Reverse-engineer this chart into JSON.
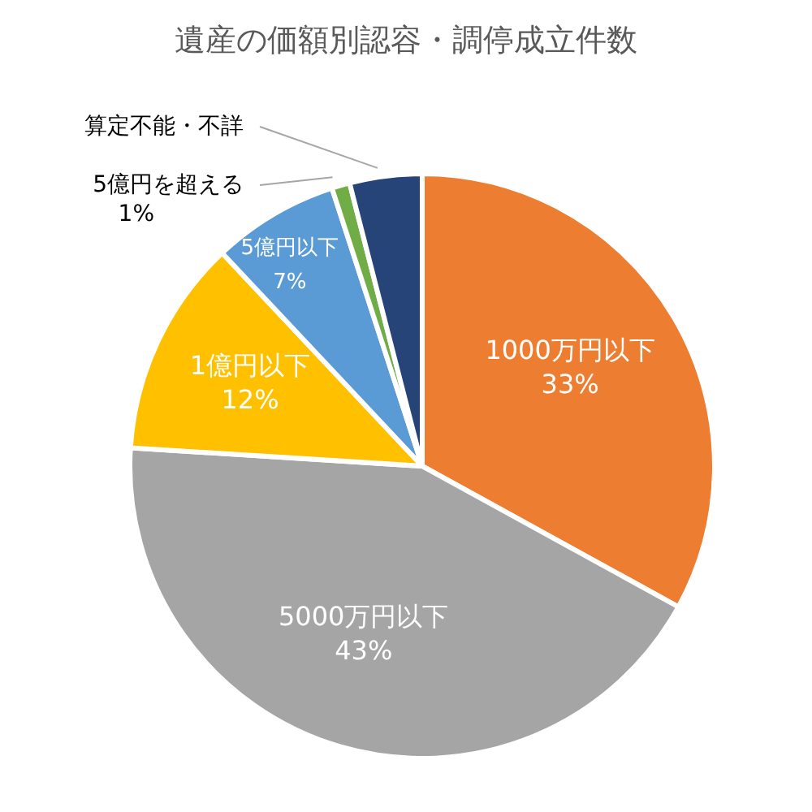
{
  "chart_data": {
    "type": "pie",
    "title": "遺産の価額別認容・調停成立件数",
    "categories": [
      "1000万円以下",
      "5000万円以下",
      "1億円以下",
      "5億円以下",
      "5億円を超える",
      "算定不能・不詳"
    ],
    "values": [
      33,
      43,
      12,
      7,
      1,
      4
    ],
    "value_labels": [
      "33%",
      "43%",
      "12%",
      "7%",
      "1%",
      null
    ],
    "colors": [
      "#ed7d31",
      "#a5a5a5",
      "#ffc000",
      "#5b9bd5",
      "#70ad47",
      "#264478"
    ],
    "legend": false
  }
}
